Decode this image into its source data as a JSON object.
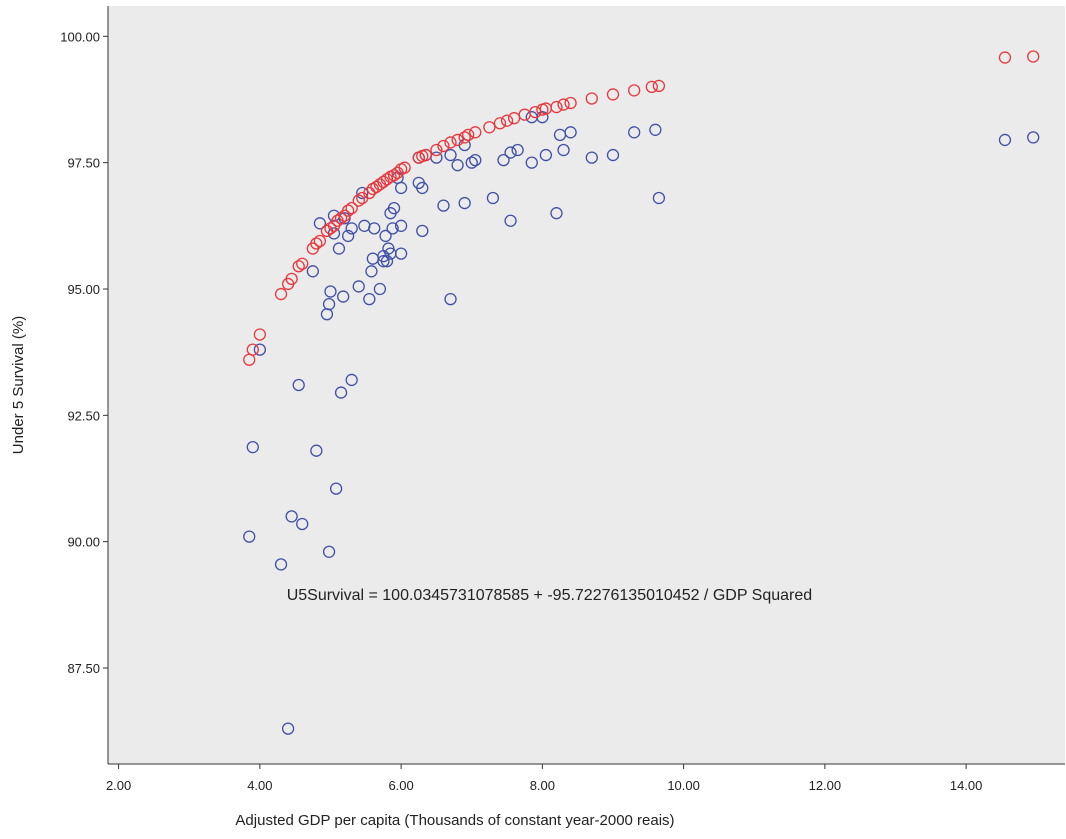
{
  "chart_data": {
    "type": "scatter",
    "xlabel": "Adjusted GDP per capita (Thousands of constant year-2000 reais)",
    "ylabel": "Under 5 Survival (%)",
    "xlim": [
      1.85,
      15.4
    ],
    "ylim": [
      85.6,
      100.6
    ],
    "x_ticks": [
      "2.00",
      "4.00",
      "6.00",
      "8.00",
      "10.00",
      "12.00",
      "14.00"
    ],
    "y_ticks": [
      "87.50",
      "90.00",
      "92.50",
      "95.00",
      "97.50",
      "100.00"
    ],
    "annotation": "U5Survival = 100.0345731078585 + -95.72276135010452 / GDP Squared",
    "annotation_at": [
      8.1,
      88.85
    ],
    "grid": false,
    "background_color": "#ebebeb",
    "series": [
      {
        "marker_color": "#4050a8",
        "points": [
          [
            4.0,
            93.8
          ],
          [
            3.9,
            91.87
          ],
          [
            3.85,
            90.1
          ],
          [
            4.3,
            89.55
          ],
          [
            4.4,
            86.3
          ],
          [
            4.45,
            90.5
          ],
          [
            4.6,
            90.35
          ],
          [
            4.55,
            93.1
          ],
          [
            4.75,
            95.35
          ],
          [
            4.8,
            91.8
          ],
          [
            4.85,
            96.3
          ],
          [
            4.95,
            94.5
          ],
          [
            4.98,
            94.7
          ],
          [
            5.0,
            94.95
          ],
          [
            4.98,
            89.8
          ],
          [
            5.05,
            96.1
          ],
          [
            5.05,
            96.45
          ],
          [
            5.08,
            91.05
          ],
          [
            5.12,
            95.8
          ],
          [
            5.15,
            92.95
          ],
          [
            5.18,
            94.85
          ],
          [
            5.2,
            96.4
          ],
          [
            5.25,
            96.05
          ],
          [
            5.3,
            96.2
          ],
          [
            5.3,
            93.2
          ],
          [
            5.4,
            95.05
          ],
          [
            5.45,
            96.9
          ],
          [
            5.48,
            96.25
          ],
          [
            5.55,
            94.8
          ],
          [
            5.58,
            95.35
          ],
          [
            5.6,
            95.6
          ],
          [
            5.62,
            96.2
          ],
          [
            5.7,
            95.0
          ],
          [
            5.75,
            95.65
          ],
          [
            5.75,
            95.55
          ],
          [
            5.78,
            96.05
          ],
          [
            5.8,
            95.55
          ],
          [
            5.82,
            95.8
          ],
          [
            5.85,
            95.7
          ],
          [
            5.85,
            96.5
          ],
          [
            5.88,
            96.2
          ],
          [
            5.9,
            96.6
          ],
          [
            5.95,
            97.2
          ],
          [
            6.0,
            97.0
          ],
          [
            6.0,
            96.25
          ],
          [
            6.0,
            95.7
          ],
          [
            6.25,
            97.6
          ],
          [
            6.25,
            97.1
          ],
          [
            6.3,
            97.0
          ],
          [
            6.3,
            96.15
          ],
          [
            6.35,
            97.65
          ],
          [
            6.5,
            97.6
          ],
          [
            6.6,
            96.65
          ],
          [
            6.7,
            97.65
          ],
          [
            6.7,
            94.8
          ],
          [
            6.8,
            97.45
          ],
          [
            6.9,
            97.85
          ],
          [
            6.9,
            96.7
          ],
          [
            7.0,
            97.5
          ],
          [
            7.05,
            97.55
          ],
          [
            7.3,
            96.8
          ],
          [
            7.45,
            97.55
          ],
          [
            7.55,
            96.35
          ],
          [
            7.55,
            97.7
          ],
          [
            7.65,
            97.75
          ],
          [
            7.85,
            98.4
          ],
          [
            7.85,
            97.5
          ],
          [
            8.0,
            98.4
          ],
          [
            8.05,
            97.65
          ],
          [
            8.2,
            96.5
          ],
          [
            8.25,
            98.05
          ],
          [
            8.3,
            97.75
          ],
          [
            8.4,
            98.1
          ],
          [
            8.7,
            97.6
          ],
          [
            9.0,
            97.65
          ],
          [
            9.3,
            98.1
          ],
          [
            9.6,
            98.15
          ],
          [
            9.65,
            96.8
          ],
          [
            14.55,
            97.95
          ],
          [
            14.95,
            98.0
          ]
        ]
      },
      {
        "marker_color": "#e8383d",
        "points": [
          [
            3.85,
            93.6
          ],
          [
            3.9,
            93.8
          ],
          [
            4.0,
            94.1
          ],
          [
            4.3,
            94.9
          ],
          [
            4.4,
            95.1
          ],
          [
            4.45,
            95.2
          ],
          [
            4.55,
            95.45
          ],
          [
            4.6,
            95.5
          ],
          [
            4.75,
            95.8
          ],
          [
            4.8,
            95.9
          ],
          [
            4.85,
            95.95
          ],
          [
            4.95,
            96.15
          ],
          [
            5.0,
            96.2
          ],
          [
            5.05,
            96.25
          ],
          [
            5.1,
            96.35
          ],
          [
            5.15,
            96.4
          ],
          [
            5.2,
            96.45
          ],
          [
            5.25,
            96.55
          ],
          [
            5.3,
            96.6
          ],
          [
            5.4,
            96.75
          ],
          [
            5.45,
            96.8
          ],
          [
            5.55,
            96.9
          ],
          [
            5.6,
            96.98
          ],
          [
            5.65,
            97.02
          ],
          [
            5.7,
            97.07
          ],
          [
            5.75,
            97.12
          ],
          [
            5.8,
            97.17
          ],
          [
            5.85,
            97.22
          ],
          [
            5.9,
            97.25
          ],
          [
            5.95,
            97.3
          ],
          [
            6.0,
            97.37
          ],
          [
            6.05,
            97.4
          ],
          [
            6.25,
            97.6
          ],
          [
            6.3,
            97.63
          ],
          [
            6.35,
            97.65
          ],
          [
            6.5,
            97.75
          ],
          [
            6.6,
            97.83
          ],
          [
            6.7,
            97.9
          ],
          [
            6.8,
            97.95
          ],
          [
            6.9,
            98.0
          ],
          [
            6.95,
            98.05
          ],
          [
            7.05,
            98.1
          ],
          [
            7.25,
            98.2
          ],
          [
            7.4,
            98.28
          ],
          [
            7.5,
            98.33
          ],
          [
            7.6,
            98.38
          ],
          [
            7.75,
            98.45
          ],
          [
            7.9,
            98.5
          ],
          [
            8.0,
            98.55
          ],
          [
            8.05,
            98.57
          ],
          [
            8.2,
            98.6
          ],
          [
            8.3,
            98.65
          ],
          [
            8.4,
            98.68
          ],
          [
            8.7,
            98.77
          ],
          [
            9.0,
            98.85
          ],
          [
            9.3,
            98.93
          ],
          [
            9.55,
            99.0
          ],
          [
            9.65,
            99.02
          ],
          [
            14.55,
            99.58
          ],
          [
            14.95,
            99.6
          ]
        ]
      }
    ]
  }
}
